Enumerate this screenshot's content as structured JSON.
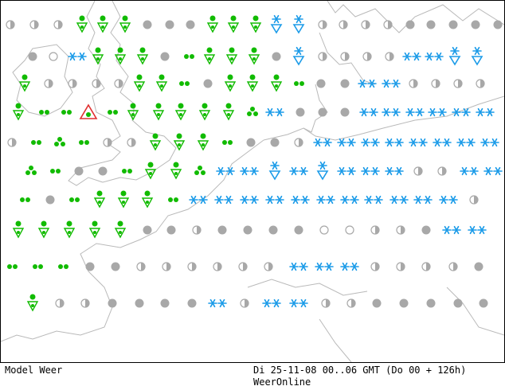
{
  "footer": {
    "left_label": "Model Weer",
    "time_label": "Di 25-11-08 00..06 GMT (Do 00 + 126h)",
    "brand": "WeerOnline"
  },
  "colors": {
    "rain": "#11bb00",
    "snow": "#1b9be8",
    "cloud": "#a8a8a8",
    "thunder": "#e03030",
    "coast": "#b9b9b9"
  },
  "legend_symbols": [
    "rain-shower-icon",
    "rain-drops-icon",
    "snow-icon",
    "snow-shower-icon",
    "cloudy-icon",
    "partly-cloudy-icon",
    "clear-icon",
    "thunderstorm-icon"
  ]
}
